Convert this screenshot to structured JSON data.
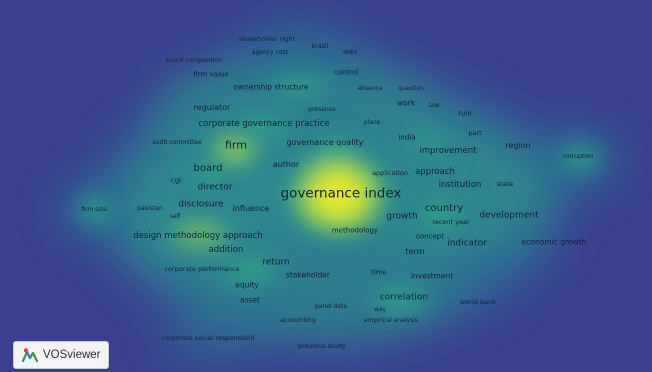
{
  "app": {
    "logo_label": "VOSviewer",
    "logo_icon": "vosviewer-logo-icon"
  },
  "colors": {
    "background": "#3a3f8f",
    "density_low": "#2c7f8c",
    "density_mid": "#3fb07e",
    "density_high": "#e8e62a",
    "label": "#14203a"
  },
  "terms": [
    {
      "id": "shareholder-right",
      "label": "shareholder right"
    },
    {
      "id": "brazil",
      "label": "brazil"
    },
    {
      "id": "agency-cost",
      "label": "agency cost"
    },
    {
      "id": "debt",
      "label": "debt"
    },
    {
      "id": "board-composition",
      "label": "board composition"
    },
    {
      "id": "firm-value",
      "label": "firm value"
    },
    {
      "id": "control",
      "label": "control"
    },
    {
      "id": "ownership-structure",
      "label": "ownership structure"
    },
    {
      "id": "absence",
      "label": "absence"
    },
    {
      "id": "question",
      "label": "question"
    },
    {
      "id": "work",
      "label": "work"
    },
    {
      "id": "law",
      "label": "law"
    },
    {
      "id": "regulator",
      "label": "regulator"
    },
    {
      "id": "presence",
      "label": "presence"
    },
    {
      "id": "rule",
      "label": "rule"
    },
    {
      "id": "corporate-governance-practice",
      "label": "corporate governance practice"
    },
    {
      "id": "place",
      "label": "place"
    },
    {
      "id": "part",
      "label": "part"
    },
    {
      "id": "audit-committee",
      "label": "audit committee"
    },
    {
      "id": "firm",
      "label": "firm"
    },
    {
      "id": "governance-quality",
      "label": "governance quality"
    },
    {
      "id": "india",
      "label": "india"
    },
    {
      "id": "region",
      "label": "region"
    },
    {
      "id": "improvement",
      "label": "improvement"
    },
    {
      "id": "corruption",
      "label": "corruption"
    },
    {
      "id": "author",
      "label": "author"
    },
    {
      "id": "board",
      "label": "board"
    },
    {
      "id": "application",
      "label": "application"
    },
    {
      "id": "approach",
      "label": "approach"
    },
    {
      "id": "cgi",
      "label": "cgi"
    },
    {
      "id": "institution",
      "label": "institution"
    },
    {
      "id": "state",
      "label": "state"
    },
    {
      "id": "director",
      "label": "director"
    },
    {
      "id": "governance-index",
      "label": "governance index"
    },
    {
      "id": "firm-size",
      "label": "firm size"
    },
    {
      "id": "pakistan",
      "label": "pakistan"
    },
    {
      "id": "disclosure",
      "label": "disclosure"
    },
    {
      "id": "influence",
      "label": "influence"
    },
    {
      "id": "self",
      "label": "self"
    },
    {
      "id": "country",
      "label": "country"
    },
    {
      "id": "growth",
      "label": "growth"
    },
    {
      "id": "recent-year",
      "label": "recent year"
    },
    {
      "id": "development",
      "label": "development"
    },
    {
      "id": "methodology",
      "label": "methodology"
    },
    {
      "id": "design-methodology-approach",
      "label": "design methodology approach"
    },
    {
      "id": "concept",
      "label": "concept"
    },
    {
      "id": "indicator",
      "label": "indicator"
    },
    {
      "id": "economic-growth",
      "label": "economic growth"
    },
    {
      "id": "addition",
      "label": "addition"
    },
    {
      "id": "term",
      "label": "term"
    },
    {
      "id": "return",
      "label": "return"
    },
    {
      "id": "corporate-performance",
      "label": "corporate performance"
    },
    {
      "id": "stakeholder",
      "label": "stakeholder"
    },
    {
      "id": "time",
      "label": "time"
    },
    {
      "id": "investment",
      "label": "investment"
    },
    {
      "id": "equity",
      "label": "equity"
    },
    {
      "id": "correlation",
      "label": "correlation"
    },
    {
      "id": "asset",
      "label": "asset"
    },
    {
      "id": "panel-data",
      "label": "panel data"
    },
    {
      "id": "way",
      "label": "way"
    },
    {
      "id": "world-bank",
      "label": "world bank"
    },
    {
      "id": "accounting",
      "label": "accounting"
    },
    {
      "id": "empirical-analysis",
      "label": "empirical analysis"
    },
    {
      "id": "corporate-social-responsibility",
      "label": "corporate social responsibilit"
    },
    {
      "id": "previous-study",
      "label": "previous study"
    }
  ]
}
